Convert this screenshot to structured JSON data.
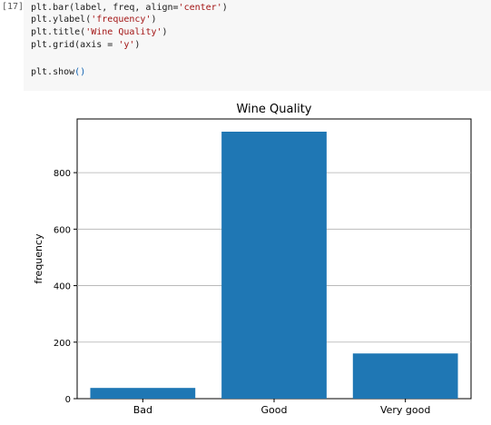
{
  "cell": {
    "exec_count": "[17]",
    "lines": [
      "plt.bar(label, freq, align='center')",
      "plt.ylabel('frequency')",
      "plt.title('Wine Quality')",
      "plt.grid(axis = 'y')",
      "",
      "plt.show()"
    ]
  },
  "chart_data": {
    "type": "bar",
    "title": "Wine Quality",
    "xlabel": "",
    "ylabel": "frequency",
    "categories": [
      "Bad",
      "Good",
      "Very good"
    ],
    "values": [
      38,
      945,
      160
    ],
    "ylim": [
      0,
      990
    ],
    "yticks": [
      0,
      200,
      400,
      600,
      800
    ],
    "grid": "y",
    "bar_color": "#1f77b4"
  }
}
